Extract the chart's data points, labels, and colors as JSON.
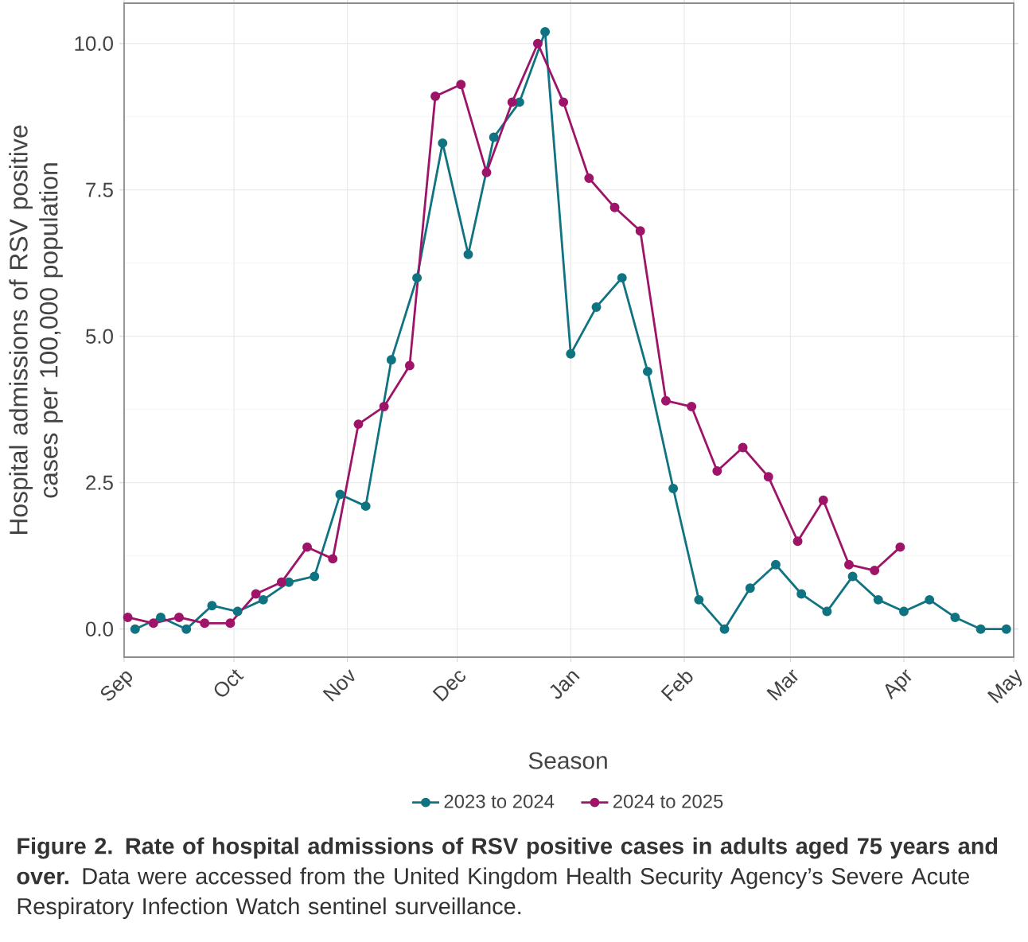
{
  "chart_data": {
    "type": "line",
    "ylabel": "Hospital admissions of RSV positive cases per 100,000 population",
    "legend_title": "Season",
    "annotations": [
      "**Figure 2. Rate of hospital admissions of RSV positive cases in adults aged 75 years and over.** Data were accessed from the United Kingdom Health Security Agency’s Severe Acute Respiratory Infection Watch sentinel surveillance."
    ],
    "xlim": [
      "2023-09-01",
      "2024-05-01"
    ],
    "xticks": [
      {
        "value": "2023-09-01",
        "label": "Sep"
      },
      {
        "value": "2023-10-01",
        "label": "Oct"
      },
      {
        "value": "2023-11-01",
        "label": "Nov"
      },
      {
        "value": "2023-12-01",
        "label": "Dec"
      },
      {
        "value": "2024-01-01",
        "label": "Jan"
      },
      {
        "value": "2024-02-01",
        "label": "Feb"
      },
      {
        "value": "2024-03-01",
        "label": "Mar"
      },
      {
        "value": "2024-04-01",
        "label": "Apr"
      },
      {
        "value": "2024-05-01",
        "label": "May"
      }
    ],
    "ylim": [
      -0.48,
      10.69
    ],
    "yticks": [
      {
        "value": 0,
        "label": "0.0"
      },
      {
        "value": 2.5,
        "label": "2.5"
      },
      {
        "value": 5,
        "label": "5.0"
      },
      {
        "value": 7.5,
        "label": "7.5"
      },
      {
        "value": 10,
        "label": "10.0"
      }
    ],
    "grid": true,
    "legend": "bottom",
    "marker": "circle",
    "line_style": "solid",
    "series": [
      {
        "name": "2023 to 2024",
        "color": "#0f7382",
        "x": [
          "2023-09-04",
          "2023-09-11",
          "2023-09-18",
          "2023-09-25",
          "2023-10-02",
          "2023-10-09",
          "2023-10-16",
          "2023-10-23",
          "2023-10-30",
          "2023-11-06",
          "2023-11-13",
          "2023-11-20",
          "2023-11-27",
          "2023-12-04",
          "2023-12-11",
          "2023-12-18",
          "2023-12-25",
          "2024-01-01",
          "2024-01-08",
          "2024-01-15",
          "2024-01-22",
          "2024-01-29",
          "2024-02-05",
          "2024-02-12",
          "2024-02-19",
          "2024-02-26",
          "2024-03-04",
          "2024-03-11",
          "2024-03-18",
          "2024-03-25",
          "2024-04-01",
          "2024-04-08",
          "2024-04-15",
          "2024-04-22",
          "2024-04-29"
        ],
        "values": [
          0.0,
          0.2,
          0.0,
          0.4,
          0.3,
          0.5,
          0.8,
          0.9,
          2.3,
          2.1,
          4.6,
          6.0,
          8.3,
          6.4,
          8.4,
          9.0,
          10.2,
          4.7,
          5.5,
          6.0,
          4.4,
          2.4,
          0.5,
          0.0,
          0.7,
          1.1,
          0.6,
          0.3,
          0.9,
          0.5,
          0.3,
          0.5,
          0.2,
          0.0,
          0.0
        ]
      },
      {
        "name": "2024 to 2025",
        "color": "#9e1468",
        "x": [
          "2023-09-02",
          "2023-09-09",
          "2023-09-16",
          "2023-09-23",
          "2023-09-30",
          "2023-10-07",
          "2023-10-14",
          "2023-10-21",
          "2023-10-28",
          "2023-11-04",
          "2023-11-11",
          "2023-11-18",
          "2023-11-25",
          "2023-12-02",
          "2023-12-09",
          "2023-12-16",
          "2023-12-23",
          "2023-12-30",
          "2024-01-06",
          "2024-01-13",
          "2024-01-20",
          "2024-01-27",
          "2024-02-03",
          "2024-02-10",
          "2024-02-17",
          "2024-02-24",
          "2024-03-03",
          "2024-03-10",
          "2024-03-17",
          "2024-03-24",
          "2024-03-31"
        ],
        "values": [
          0.2,
          0.1,
          0.2,
          0.1,
          0.1,
          0.6,
          0.8,
          1.4,
          1.2,
          3.5,
          3.8,
          4.5,
          9.1,
          9.3,
          7.8,
          9.0,
          10.0,
          9.0,
          7.7,
          7.2,
          6.8,
          3.9,
          3.8,
          2.7,
          3.1,
          2.6,
          1.5,
          2.2,
          1.1,
          1.0,
          1.4
        ]
      }
    ]
  }
}
